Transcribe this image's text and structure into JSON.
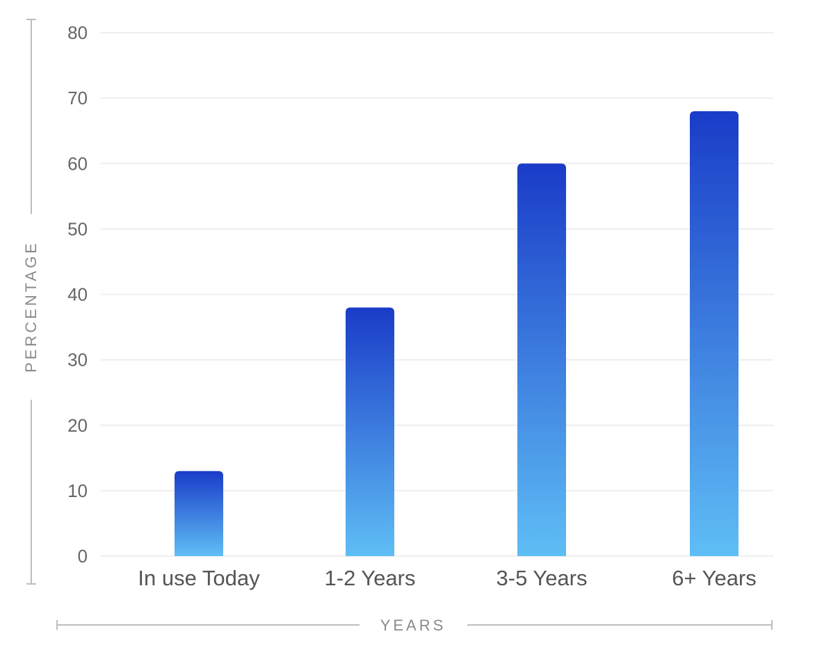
{
  "chart_data": {
    "type": "bar",
    "categories": [
      "In use Today",
      "1-2 Years",
      "3-5 Years",
      "6+ Years"
    ],
    "values": [
      13,
      38,
      60,
      68
    ],
    "xlabel": "YEARS",
    "ylabel": "PERCENTAGE",
    "ylim": [
      0,
      80
    ],
    "yticks": [
      0,
      10,
      20,
      30,
      40,
      50,
      60,
      70,
      80
    ],
    "grid": true,
    "colors": {
      "bar_top": "#1a3cc8",
      "bar_bottom": "#5fbef5",
      "grid": "#eeeeee",
      "axis_text": "#666666"
    }
  }
}
